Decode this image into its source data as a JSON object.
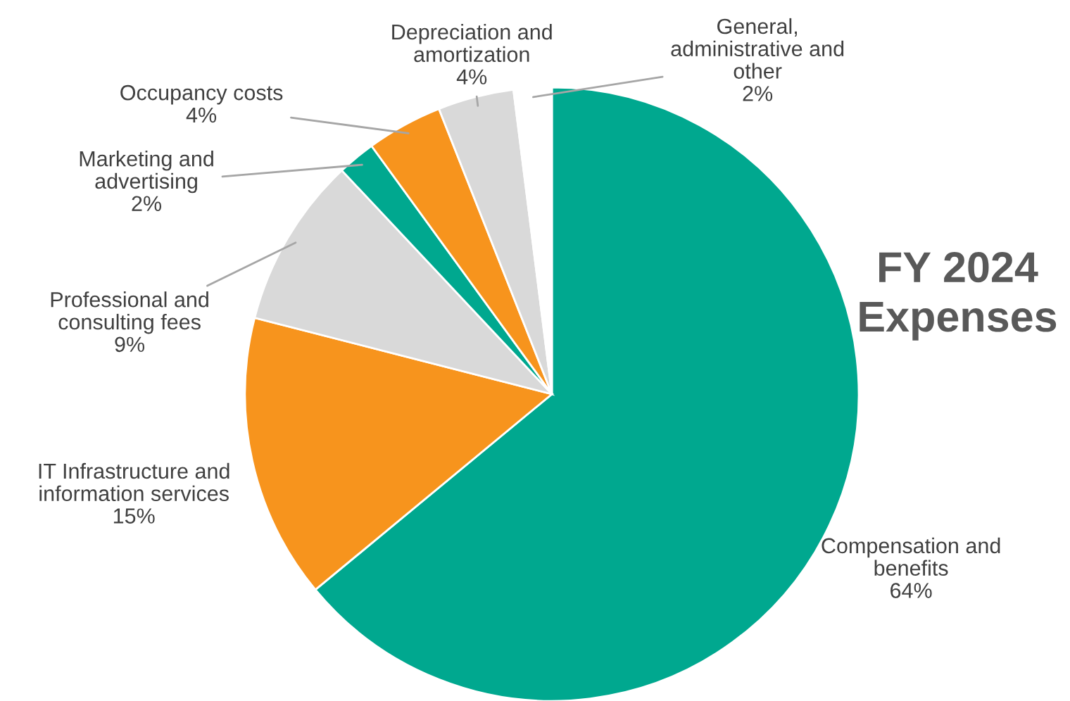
{
  "chart_data": {
    "type": "pie",
    "title": "FY 2024 Expenses",
    "categories": [
      "Compensation and\nbenefits",
      "IT Infrastructure and\ninformation services",
      "Professional and\nconsulting fees",
      "Marketing and\nadvertising",
      "Occupancy costs",
      "Depreciation and\namortization",
      "General,\nadministrative and\nother"
    ],
    "values": [
      64,
      15,
      9,
      2,
      4,
      4,
      2
    ],
    "colors": [
      "#00a88f",
      "#f7941d",
      "#d9d9d9",
      "#00a88f",
      "#f7941d",
      "#d9d9d9",
      "#ffffff"
    ],
    "value_labels": [
      "64%",
      "15%",
      "9%",
      "2%",
      "4%",
      "4%",
      "2%"
    ],
    "legend": false
  }
}
